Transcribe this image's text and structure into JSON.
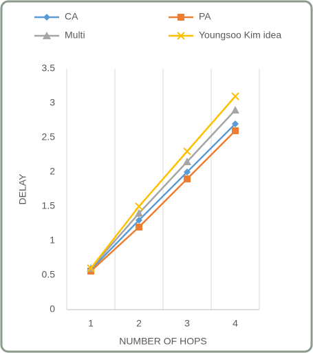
{
  "chart_data": {
    "type": "line",
    "x_label": "NUMBER OF HOPS",
    "y_label": "DELAY",
    "categories": [
      "1",
      "2",
      "3",
      "4"
    ],
    "series": [
      {
        "name": "CA",
        "color": "#5b9bd5",
        "marker": "diamond",
        "values": [
          0.58,
          1.3,
          2.0,
          2.7
        ]
      },
      {
        "name": "PA",
        "color": "#ed7d31",
        "marker": "square",
        "values": [
          0.56,
          1.2,
          1.9,
          2.6
        ]
      },
      {
        "name": "Multi",
        "color": "#a5a5a5",
        "marker": "triangle",
        "values": [
          0.6,
          1.4,
          2.15,
          2.9
        ]
      },
      {
        "name": "Youngsoo Kim idea",
        "color": "#ffc000",
        "marker": "x",
        "values": [
          0.6,
          1.5,
          2.3,
          3.1
        ]
      }
    ],
    "ylim": [
      0,
      3.5
    ],
    "yticks": [
      0,
      0.5,
      1,
      1.5,
      2,
      2.5,
      3,
      3.5
    ],
    "grid": "vertical",
    "legend": "top"
  }
}
